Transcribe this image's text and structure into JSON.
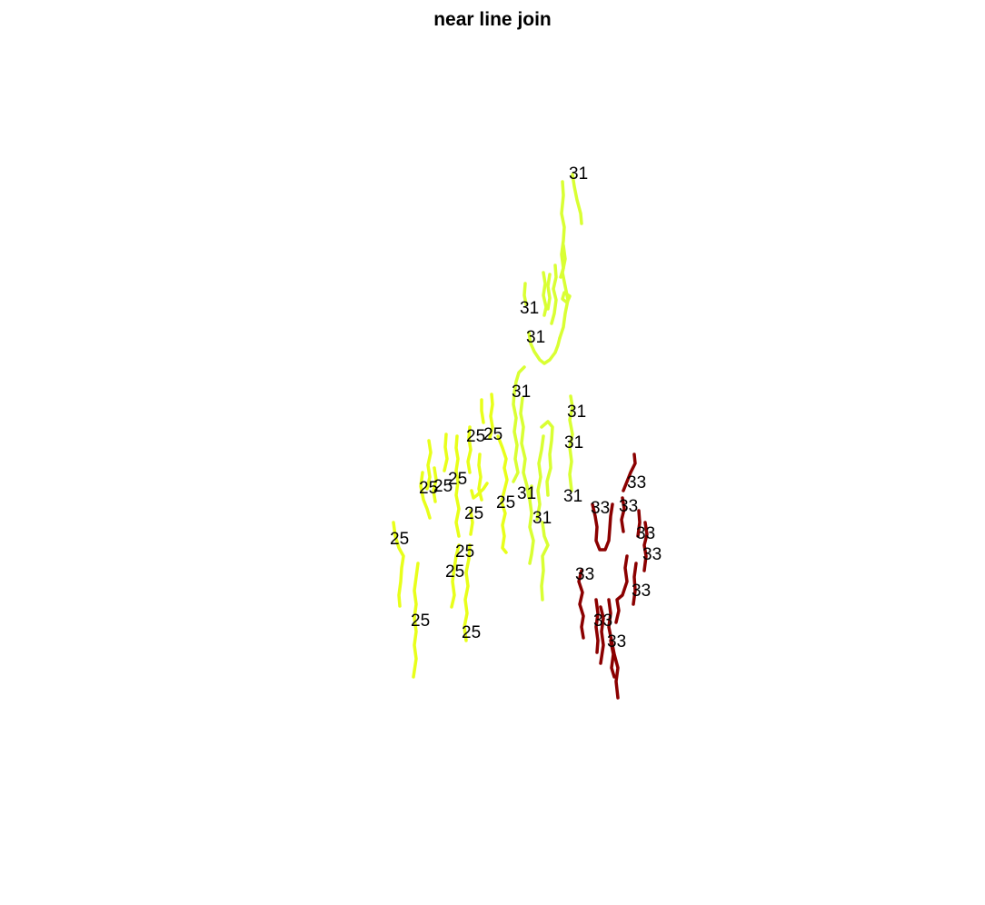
{
  "title": "near line join",
  "colors": {
    "group_25": "#e8ff1a",
    "group_31": "#d9ff33",
    "group_33": "#8b0000"
  },
  "labels": [
    {
      "text": "31",
      "group": "31"
    },
    {
      "text": "31",
      "group": "31"
    },
    {
      "text": "31",
      "group": "31"
    },
    {
      "text": "31",
      "group": "31"
    },
    {
      "text": "31",
      "group": "31"
    },
    {
      "text": "31",
      "group": "31"
    },
    {
      "text": "31",
      "group": "31"
    },
    {
      "text": "31",
      "group": "31"
    },
    {
      "text": "31",
      "group": "31"
    },
    {
      "text": "25",
      "group": "25"
    },
    {
      "text": "25",
      "group": "25"
    },
    {
      "text": "25",
      "group": "25"
    },
    {
      "text": "25",
      "group": "25"
    },
    {
      "text": "25",
      "group": "25"
    },
    {
      "text": "25",
      "group": "25"
    },
    {
      "text": "25",
      "group": "25"
    },
    {
      "text": "25",
      "group": "25"
    },
    {
      "text": "25",
      "group": "25"
    },
    {
      "text": "25",
      "group": "25"
    },
    {
      "text": "25",
      "group": "25"
    },
    {
      "text": "25",
      "group": "25"
    },
    {
      "text": "33",
      "group": "33"
    },
    {
      "text": "33",
      "group": "33"
    },
    {
      "text": "33",
      "group": "33"
    },
    {
      "text": "33",
      "group": "33"
    },
    {
      "text": "33",
      "group": "33"
    },
    {
      "text": "33",
      "group": "33"
    },
    {
      "text": "33",
      "group": "33"
    },
    {
      "text": "33",
      "group": "33"
    },
    {
      "text": "33",
      "group": "33"
    }
  ]
}
